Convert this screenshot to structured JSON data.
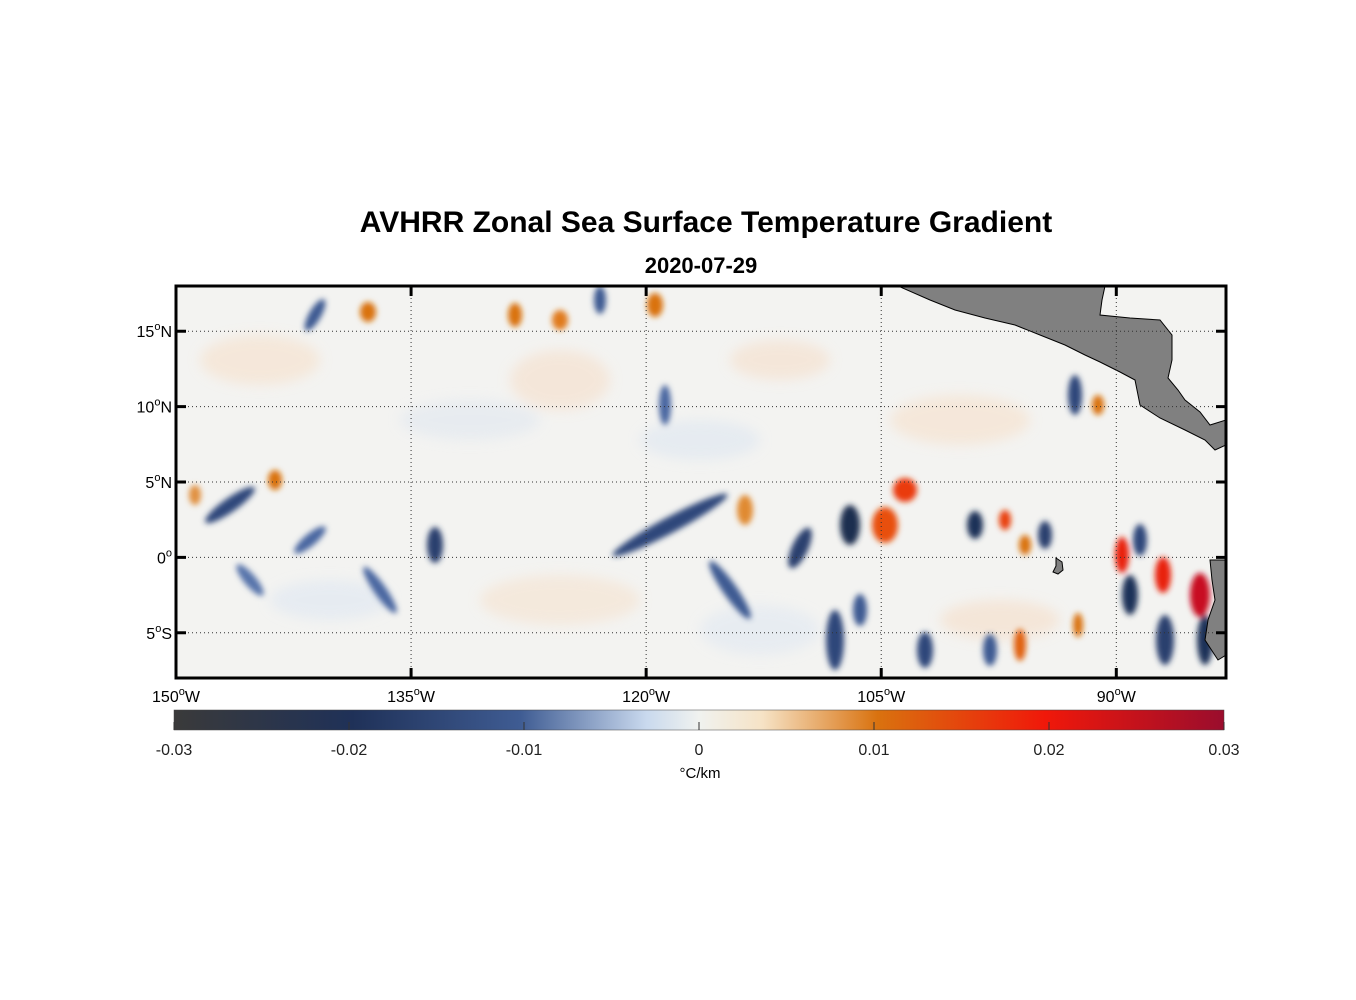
{
  "title": "AVHRR Zonal Sea Surface Temperature Gradient",
  "subtitle": "2020-07-29",
  "map": {
    "lon_range": [
      -150,
      -83
    ],
    "lat_range": [
      -8,
      18
    ],
    "lat_ticks": [
      {
        "value": 15,
        "num": "15",
        "hemi": "N"
      },
      {
        "value": 10,
        "num": "10",
        "hemi": "N"
      },
      {
        "value": 5,
        "num": "5",
        "hemi": "N"
      },
      {
        "value": 0,
        "num": "0",
        "hemi": ""
      },
      {
        "value": -5,
        "num": "5",
        "hemi": "S"
      }
    ],
    "lon_ticks": [
      {
        "value": -150,
        "num": "150",
        "hemi": "W"
      },
      {
        "value": -135,
        "num": "135",
        "hemi": "W"
      },
      {
        "value": -120,
        "num": "120",
        "hemi": "W"
      },
      {
        "value": -105,
        "num": "105",
        "hemi": "W"
      },
      {
        "value": -90,
        "num": "90",
        "hemi": "W"
      }
    ],
    "grid": "dotted",
    "land_color": "#808080"
  },
  "colorbar": {
    "min": -0.03,
    "max": 0.03,
    "ticks": [
      "-0.03",
      "-0.02",
      "-0.01",
      "0",
      "0.01",
      "0.02",
      "0.03"
    ],
    "unit_label": "°C/km",
    "colors": [
      "#3a3a3a",
      "#1f3158",
      "#3f5c93",
      "#c9d9ee",
      "#f0f2ef",
      "#f6e3c6",
      "#d9720f",
      "#f0180a",
      "#9a0d2d"
    ]
  }
}
